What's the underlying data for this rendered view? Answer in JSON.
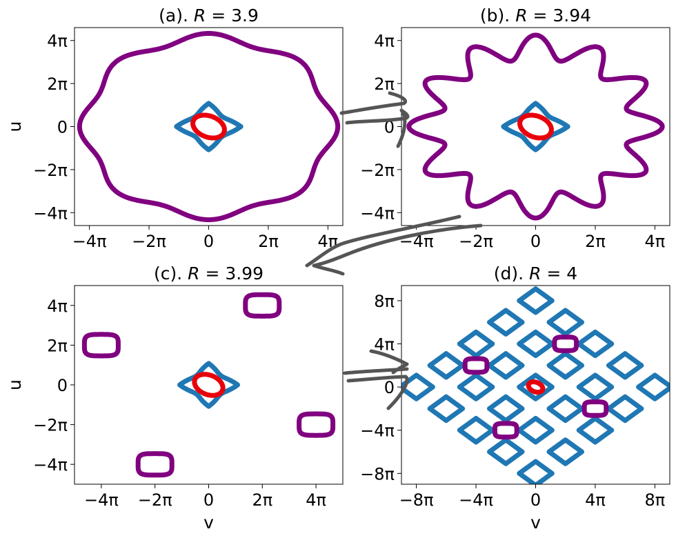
{
  "chart_data": [
    {
      "id": "a",
      "type": "scatter",
      "title": "(a). R = 3.9",
      "title_parts": {
        "prefix": "(a). ",
        "var": "R",
        "rest": " = 3.9"
      },
      "xlabel": "",
      "ylabel": "u",
      "xlim_pi": [
        -4.5,
        4.5
      ],
      "ylim_pi": [
        -4.6,
        4.6
      ],
      "xticks": [
        {
          "v": -4,
          "label": "−4π"
        },
        {
          "v": -2,
          "label": "−2π"
        },
        {
          "v": 0,
          "label": "0"
        },
        {
          "v": 2,
          "label": "2π"
        },
        {
          "v": 4,
          "label": "4π"
        }
      ],
      "yticks": [
        {
          "v": -4,
          "label": "−4π"
        },
        {
          "v": -2,
          "label": "−2π"
        },
        {
          "v": 0,
          "label": "0"
        },
        {
          "v": 2,
          "label": "2π"
        },
        {
          "v": 4,
          "label": "4π"
        }
      ],
      "curves": [
        {
          "kind": "ring",
          "color": "#800080",
          "r": 4.15,
          "amp": 0.18,
          "k": 8
        },
        {
          "kind": "diamond",
          "color": "#1f77b4",
          "r": 1.0
        },
        {
          "kind": "tilted_ellipse",
          "color": "#e8000b",
          "a": 0.6,
          "b": 0.45,
          "cx": 0,
          "cy": 0
        }
      ]
    },
    {
      "id": "b",
      "type": "scatter",
      "title": "(b). R = 3.94",
      "title_parts": {
        "prefix": "(b). ",
        "var": "R",
        "rest": " = 3.94"
      },
      "xlabel": "",
      "ylabel": "",
      "xlim_pi": [
        -4.5,
        4.5
      ],
      "ylim_pi": [
        -4.6,
        4.6
      ],
      "xticks": [
        {
          "v": -4,
          "label": "−4π"
        },
        {
          "v": -2,
          "label": "−2π"
        },
        {
          "v": 0,
          "label": "0"
        },
        {
          "v": 2,
          "label": "2π"
        },
        {
          "v": 4,
          "label": "4π"
        }
      ],
      "yticks": [
        {
          "v": -4,
          "label": "−4π"
        },
        {
          "v": -2,
          "label": "−2π"
        },
        {
          "v": 0,
          "label": "0"
        },
        {
          "v": 2,
          "label": "2π"
        },
        {
          "v": 4,
          "label": "4π"
        }
      ],
      "curves": [
        {
          "kind": "ring",
          "color": "#800080",
          "r": 3.7,
          "amp": 0.55,
          "k": 12
        },
        {
          "kind": "diamond",
          "color": "#1f77b4",
          "r": 1.0
        },
        {
          "kind": "tilted_ellipse",
          "color": "#e8000b",
          "a": 0.6,
          "b": 0.45,
          "cx": 0,
          "cy": 0
        }
      ]
    },
    {
      "id": "c",
      "type": "scatter",
      "title": "(c). R = 3.99",
      "title_parts": {
        "prefix": "(c). ",
        "var": "R",
        "rest": " = 3.99"
      },
      "xlabel": "v",
      "ylabel": "u",
      "xlim_pi": [
        -5,
        5
      ],
      "ylim_pi": [
        -5,
        5
      ],
      "xticks": [
        {
          "v": -4,
          "label": "−4π"
        },
        {
          "v": -2,
          "label": "−2π"
        },
        {
          "v": 0,
          "label": "0"
        },
        {
          "v": 2,
          "label": "2π"
        },
        {
          "v": 4,
          "label": "4π"
        }
      ],
      "yticks": [
        {
          "v": -4,
          "label": "−4π"
        },
        {
          "v": -2,
          "label": "−2π"
        },
        {
          "v": 0,
          "label": "0"
        },
        {
          "v": 2,
          "label": "2π"
        },
        {
          "v": 4,
          "label": "4π"
        }
      ],
      "curves": [
        {
          "kind": "diamond",
          "color": "#1f77b4",
          "r": 1.0
        },
        {
          "kind": "tilted_ellipse",
          "color": "#e8000b",
          "a": 0.6,
          "b": 0.45,
          "cx": 0,
          "cy": 0
        },
        {
          "kind": "island",
          "color": "#800080",
          "cx": 2,
          "cy": 4,
          "r": 0.6
        },
        {
          "kind": "island",
          "color": "#800080",
          "cx": -4,
          "cy": 2,
          "r": 0.6
        },
        {
          "kind": "island",
          "color": "#800080",
          "cx": 4,
          "cy": -2,
          "r": 0.6
        },
        {
          "kind": "island",
          "color": "#800080",
          "cx": -2,
          "cy": -4,
          "r": 0.6
        }
      ]
    },
    {
      "id": "d",
      "type": "scatter",
      "title": "(d). R = 4",
      "title_parts": {
        "prefix": "(d). ",
        "var": "R",
        "rest": " = 4"
      },
      "xlabel": "v",
      "ylabel": "",
      "xlim_pi": [
        -9,
        9
      ],
      "ylim_pi": [
        -9,
        9.4
      ],
      "xticks": [
        {
          "v": -8,
          "label": "−8π"
        },
        {
          "v": -4,
          "label": "−4π"
        },
        {
          "v": 0,
          "label": "0"
        },
        {
          "v": 4,
          "label": "4π"
        },
        {
          "v": 8,
          "label": "8π"
        }
      ],
      "yticks": [
        {
          "v": -8,
          "label": "−8π"
        },
        {
          "v": -4,
          "label": "−4π"
        },
        {
          "v": 0,
          "label": "0"
        },
        {
          "v": 4,
          "label": "4π"
        },
        {
          "v": 8,
          "label": "8π"
        }
      ],
      "curves": [
        {
          "kind": "web",
          "color": "#1f77b4",
          "r": 8,
          "cell": 2
        },
        {
          "kind": "tilted_ellipse",
          "color": "#e8000b",
          "a": 0.55,
          "b": 0.4,
          "cx": 0,
          "cy": 0
        },
        {
          "kind": "island",
          "color": "#800080",
          "cx": 2,
          "cy": 4,
          "r": 0.7
        },
        {
          "kind": "island",
          "color": "#800080",
          "cx": -4,
          "cy": 2,
          "r": 0.7
        },
        {
          "kind": "island",
          "color": "#800080",
          "cx": 4,
          "cy": -2,
          "r": 0.7
        },
        {
          "kind": "island",
          "color": "#800080",
          "cx": -2,
          "cy": -4,
          "r": 0.7
        }
      ]
    }
  ],
  "arrow_color": "#555555"
}
